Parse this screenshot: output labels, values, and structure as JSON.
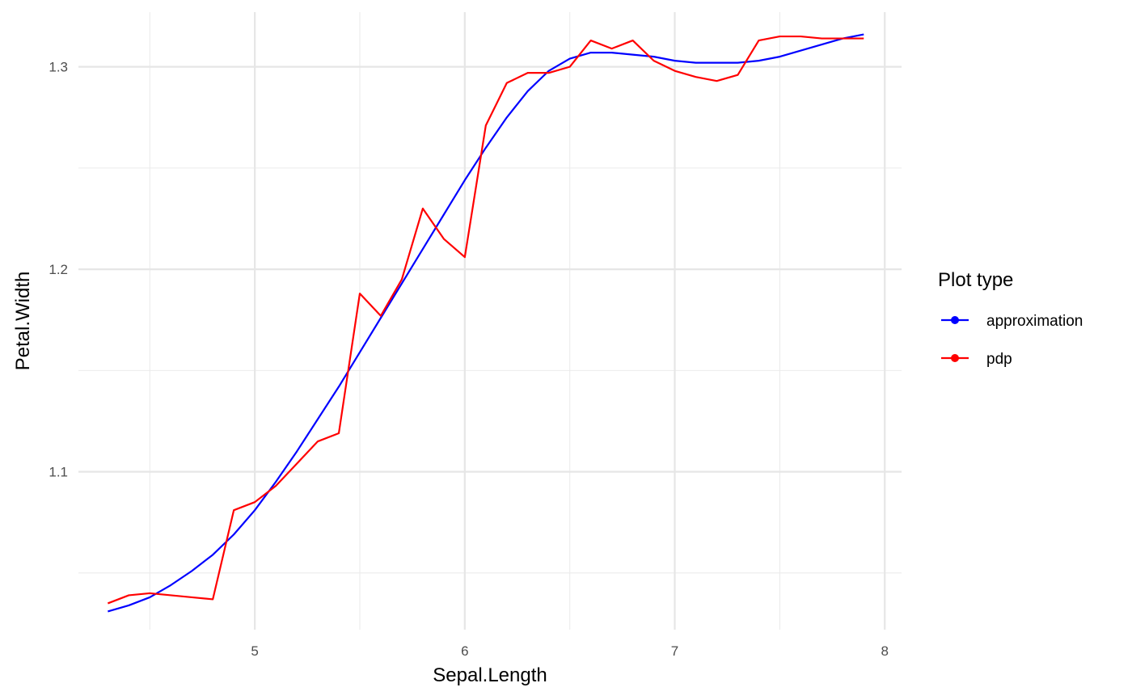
{
  "chart_data": {
    "type": "line",
    "xlabel": "Sepal.Length",
    "ylabel": "Petal.Width",
    "xlim": [
      4.16,
      8.08
    ],
    "ylim": [
      1.022,
      1.327
    ],
    "x_ticks": [
      5,
      6,
      7,
      8
    ],
    "x_tick_labels": [
      "5",
      "6",
      "7",
      "8"
    ],
    "x_minor_ticks": [
      4.5,
      5.5,
      6.5,
      7.5
    ],
    "y_ticks": [
      1.1,
      1.2,
      1.3
    ],
    "y_tick_labels": [
      "1.1",
      "1.2",
      "1.3"
    ],
    "y_minor_ticks": [
      1.05,
      1.15,
      1.25
    ],
    "grid": true,
    "legend": {
      "title": "Plot type",
      "position": "right"
    },
    "series": [
      {
        "name": "approximation",
        "color": "#0000ff",
        "x": [
          4.3,
          4.4,
          4.5,
          4.6,
          4.7,
          4.8,
          4.9,
          5.0,
          5.1,
          5.2,
          5.3,
          5.4,
          5.5,
          5.6,
          5.7,
          5.8,
          5.9,
          6.0,
          6.1,
          6.2,
          6.3,
          6.4,
          6.5,
          6.6,
          6.7,
          6.8,
          6.9,
          7.0,
          7.1,
          7.2,
          7.3,
          7.4,
          7.5,
          7.6,
          7.7,
          7.8,
          7.9
        ],
        "y": [
          1.031,
          1.034,
          1.038,
          1.044,
          1.051,
          1.059,
          1.069,
          1.081,
          1.095,
          1.11,
          1.126,
          1.142,
          1.159,
          1.176,
          1.193,
          1.21,
          1.227,
          1.244,
          1.26,
          1.275,
          1.288,
          1.298,
          1.304,
          1.307,
          1.307,
          1.306,
          1.305,
          1.303,
          1.302,
          1.302,
          1.302,
          1.303,
          1.305,
          1.308,
          1.311,
          1.314,
          1.316
        ]
      },
      {
        "name": "pdp",
        "color": "#ff0000",
        "x": [
          4.3,
          4.4,
          4.5,
          4.6,
          4.7,
          4.8,
          4.9,
          5.0,
          5.1,
          5.2,
          5.3,
          5.4,
          5.5,
          5.6,
          5.7,
          5.8,
          5.9,
          6.0,
          6.1,
          6.2,
          6.3,
          6.4,
          6.5,
          6.6,
          6.7,
          6.8,
          6.9,
          7.0,
          7.1,
          7.2,
          7.3,
          7.4,
          7.5,
          7.6,
          7.7,
          7.8,
          7.9
        ],
        "y": [
          1.035,
          1.039,
          1.04,
          1.039,
          1.038,
          1.037,
          1.081,
          1.085,
          1.093,
          1.104,
          1.115,
          1.119,
          1.188,
          1.177,
          1.195,
          1.23,
          1.215,
          1.206,
          1.271,
          1.292,
          1.297,
          1.297,
          1.3,
          1.313,
          1.309,
          1.313,
          1.303,
          1.298,
          1.295,
          1.293,
          1.296,
          1.313,
          1.315,
          1.315,
          1.314,
          1.314,
          1.314
        ]
      }
    ]
  }
}
